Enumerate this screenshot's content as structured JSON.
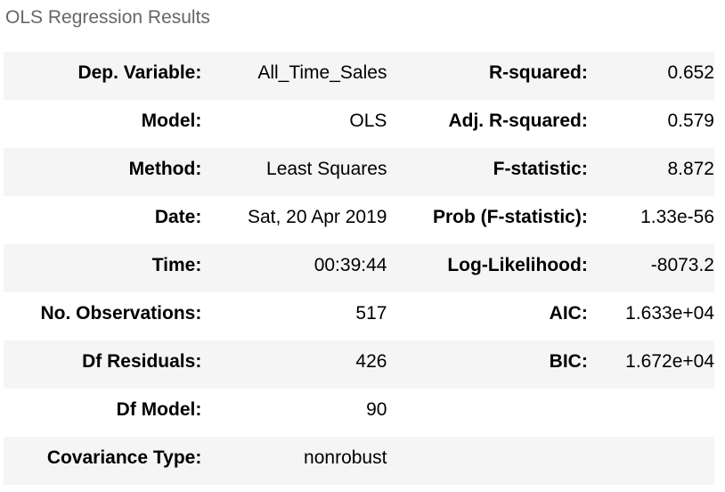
{
  "caption": "OLS Regression Results",
  "rows": [
    {
      "k1": "Dep. Variable:",
      "v1": "All_Time_Sales",
      "k2": "R-squared:",
      "v2": "0.652"
    },
    {
      "k1": "Model:",
      "v1": "OLS",
      "k2": "Adj. R-squared:",
      "v2": "0.579"
    },
    {
      "k1": "Method:",
      "v1": "Least Squares",
      "k2": "F-statistic:",
      "v2": "8.872"
    },
    {
      "k1": "Date:",
      "v1": "Sat, 20 Apr 2019",
      "k2": "Prob (F-statistic):",
      "v2": "1.33e-56"
    },
    {
      "k1": "Time:",
      "v1": "00:39:44",
      "k2": "Log-Likelihood:",
      "v2": "-8073.2"
    },
    {
      "k1": "No. Observations:",
      "v1": "517",
      "k2": "AIC:",
      "v2": "1.633e+04"
    },
    {
      "k1": "Df Residuals:",
      "v1": "426",
      "k2": "BIC:",
      "v2": "1.672e+04"
    },
    {
      "k1": "Df Model:",
      "v1": "90",
      "k2": "",
      "v2": ""
    },
    {
      "k1": "Covariance Type:",
      "v1": "nonrobust",
      "k2": "",
      "v2": ""
    }
  ]
}
